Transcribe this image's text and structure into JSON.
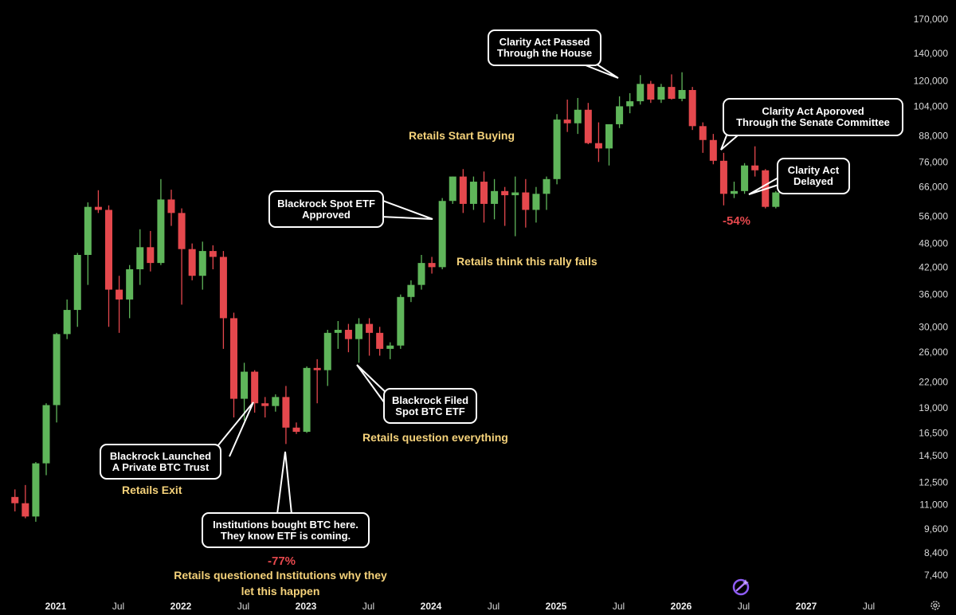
{
  "chart_data": {
    "type": "candlestick",
    "scale": "log",
    "ylim": [
      6800,
      175000
    ],
    "y_ticks": [
      7400,
      8400,
      9600,
      11000,
      12500,
      14500,
      16500,
      19000,
      22000,
      26000,
      30000,
      36000,
      42000,
      48000,
      56000,
      66000,
      76000,
      88000,
      104000,
      120000,
      140000,
      170000
    ],
    "y_tick_labels": [
      "7,400",
      "8,400",
      "9,600",
      "11,000",
      "12,500",
      "14,500",
      "16,500",
      "19,000",
      "22,000",
      "26,000",
      "30,000",
      "36,000",
      "42,000",
      "48,000",
      "56,000",
      "66,000",
      "76,000",
      "88,000",
      "104,000",
      "120,000",
      "140,000",
      "170,000"
    ],
    "x_ticks": [
      {
        "label": "2021",
        "year": true
      },
      {
        "label": "Jul",
        "year": false
      },
      {
        "label": "2022",
        "year": true
      },
      {
        "label": "Jul",
        "year": false
      },
      {
        "label": "2023",
        "year": true
      },
      {
        "label": "Jul",
        "year": false
      },
      {
        "label": "2024",
        "year": true
      },
      {
        "label": "Jul",
        "year": false
      },
      {
        "label": "2025",
        "year": true
      },
      {
        "label": "Jul",
        "year": false
      },
      {
        "label": "2026",
        "year": true
      },
      {
        "label": "Jul",
        "year": false
      },
      {
        "label": "2027",
        "year": true
      },
      {
        "label": "Jul",
        "year": false
      }
    ],
    "bull_color": "#5fb55a",
    "bear_color": "#e5484d",
    "candles": [
      {
        "date": "2020-10",
        "o": 11500,
        "h": 12000,
        "l": 10600,
        "c": 11100
      },
      {
        "date": "2020-11",
        "o": 11100,
        "h": 12300,
        "l": 10200,
        "c": 10300
      },
      {
        "date": "2020-12",
        "o": 10300,
        "h": 14000,
        "l": 10000,
        "c": 13900
      },
      {
        "date": "2021-01",
        "o": 13900,
        "h": 19500,
        "l": 13000,
        "c": 19300
      },
      {
        "date": "2021-02",
        "o": 19300,
        "h": 29000,
        "l": 17500,
        "c": 28800
      },
      {
        "date": "2021-03",
        "o": 28800,
        "h": 35000,
        "l": 28000,
        "c": 33000
      },
      {
        "date": "2021-04",
        "o": 33000,
        "h": 45500,
        "l": 30000,
        "c": 45000
      },
      {
        "date": "2021-05",
        "o": 45000,
        "h": 60500,
        "l": 38000,
        "c": 59000
      },
      {
        "date": "2021-06",
        "o": 59000,
        "h": 64800,
        "l": 57000,
        "c": 58000
      },
      {
        "date": "2021-07",
        "o": 58000,
        "h": 59500,
        "l": 30000,
        "c": 37000
      },
      {
        "date": "2021-08",
        "o": 37000,
        "h": 40000,
        "l": 29000,
        "c": 35000
      },
      {
        "date": "2021-09",
        "o": 35000,
        "h": 42500,
        "l": 31500,
        "c": 41500
      },
      {
        "date": "2021-10",
        "o": 41500,
        "h": 52000,
        "l": 38000,
        "c": 47000
      },
      {
        "date": "2021-11",
        "o": 47000,
        "h": 51500,
        "l": 41000,
        "c": 43000
      },
      {
        "date": "2021-12",
        "o": 43000,
        "h": 69000,
        "l": 42500,
        "c": 61500
      },
      {
        "date": "2022-01",
        "o": 61500,
        "h": 65000,
        "l": 53000,
        "c": 57000
      },
      {
        "date": "2022-02",
        "o": 57000,
        "h": 58500,
        "l": 34000,
        "c": 46500
      },
      {
        "date": "2022-03",
        "o": 46500,
        "h": 48000,
        "l": 39000,
        "c": 40000
      },
      {
        "date": "2022-04",
        "o": 40000,
        "h": 48500,
        "l": 37000,
        "c": 46000
      },
      {
        "date": "2022-05",
        "o": 46000,
        "h": 47500,
        "l": 41500,
        "c": 44500
      },
      {
        "date": "2022-06",
        "o": 44500,
        "h": 46000,
        "l": 26500,
        "c": 31500
      },
      {
        "date": "2022-07",
        "o": 31500,
        "h": 32500,
        "l": 18000,
        "c": 20000
      },
      {
        "date": "2022-08",
        "o": 20000,
        "h": 24500,
        "l": 17700,
        "c": 23300
      },
      {
        "date": "2022-09",
        "o": 23300,
        "h": 23500,
        "l": 18500,
        "c": 19500
      },
      {
        "date": "2022-10",
        "o": 19500,
        "h": 20200,
        "l": 18000,
        "c": 19200
      },
      {
        "date": "2022-11",
        "o": 19200,
        "h": 20500,
        "l": 18600,
        "c": 20200
      },
      {
        "date": "2022-12",
        "o": 20200,
        "h": 21500,
        "l": 15500,
        "c": 17000
      },
      {
        "date": "2023-01",
        "o": 17000,
        "h": 17500,
        "l": 16400,
        "c": 16600
      },
      {
        "date": "2023-02",
        "o": 16600,
        "h": 24000,
        "l": 16500,
        "c": 23800
      },
      {
        "date": "2023-03",
        "o": 23800,
        "h": 25000,
        "l": 19500,
        "c": 23500
      },
      {
        "date": "2023-04",
        "o": 23500,
        "h": 29500,
        "l": 21500,
        "c": 29000
      },
      {
        "date": "2023-05",
        "o": 29000,
        "h": 31000,
        "l": 26500,
        "c": 29500
      },
      {
        "date": "2023-06",
        "o": 29500,
        "h": 30500,
        "l": 26000,
        "c": 28000
      },
      {
        "date": "2023-07",
        "o": 28000,
        "h": 31500,
        "l": 24500,
        "c": 30500
      },
      {
        "date": "2023-08",
        "o": 30500,
        "h": 31500,
        "l": 25500,
        "c": 29000
      },
      {
        "date": "2023-09",
        "o": 29000,
        "h": 30000,
        "l": 25500,
        "c": 26500
      },
      {
        "date": "2023-10",
        "o": 26500,
        "h": 27500,
        "l": 25000,
        "c": 27000
      },
      {
        "date": "2023-11",
        "o": 27000,
        "h": 36000,
        "l": 26500,
        "c": 35500
      },
      {
        "date": "2023-12",
        "o": 35500,
        "h": 39000,
        "l": 34500,
        "c": 38000
      },
      {
        "date": "2024-01",
        "o": 38000,
        "h": 45000,
        "l": 37000,
        "c": 43000
      },
      {
        "date": "2024-02",
        "o": 43000,
        "h": 44500,
        "l": 40500,
        "c": 42000
      },
      {
        "date": "2024-03",
        "o": 42000,
        "h": 62000,
        "l": 41500,
        "c": 61000
      },
      {
        "date": "2024-04",
        "o": 61000,
        "h": 70000,
        "l": 60000,
        "c": 70000
      },
      {
        "date": "2024-05",
        "o": 70000,
        "h": 73000,
        "l": 57000,
        "c": 60000
      },
      {
        "date": "2024-06",
        "o": 60000,
        "h": 70000,
        "l": 58000,
        "c": 68000
      },
      {
        "date": "2024-07",
        "o": 68000,
        "h": 72000,
        "l": 54000,
        "c": 60000
      },
      {
        "date": "2024-08",
        "o": 60000,
        "h": 69000,
        "l": 55000,
        "c": 64500
      },
      {
        "date": "2024-09",
        "o": 64500,
        "h": 66000,
        "l": 53000,
        "c": 63000
      },
      {
        "date": "2024-10",
        "o": 63000,
        "h": 70000,
        "l": 50000,
        "c": 64000
      },
      {
        "date": "2024-11",
        "o": 64000,
        "h": 69000,
        "l": 52500,
        "c": 58000
      },
      {
        "date": "2024-12",
        "o": 58000,
        "h": 66000,
        "l": 54000,
        "c": 63500
      },
      {
        "date": "2025-01",
        "o": 63500,
        "h": 70000,
        "l": 58000,
        "c": 69000
      },
      {
        "date": "2025-02",
        "o": 69000,
        "h": 99500,
        "l": 67000,
        "c": 96500
      },
      {
        "date": "2025-03",
        "o": 96500,
        "h": 108000,
        "l": 90000,
        "c": 94500
      },
      {
        "date": "2025-04",
        "o": 94500,
        "h": 109000,
        "l": 89000,
        "c": 102000
      },
      {
        "date": "2025-05",
        "o": 102000,
        "h": 106000,
        "l": 84000,
        "c": 84500
      },
      {
        "date": "2025-06",
        "o": 84500,
        "h": 95000,
        "l": 76000,
        "c": 82000
      },
      {
        "date": "2025-07",
        "o": 82000,
        "h": 94000,
        "l": 74500,
        "c": 94000
      },
      {
        "date": "2025-08",
        "o": 94000,
        "h": 110000,
        "l": 92000,
        "c": 104000
      },
      {
        "date": "2025-09",
        "o": 104000,
        "h": 112000,
        "l": 100000,
        "c": 107000
      },
      {
        "date": "2025-10",
        "o": 107000,
        "h": 124000,
        "l": 105000,
        "c": 118000
      },
      {
        "date": "2025-11",
        "o": 118000,
        "h": 120000,
        "l": 106000,
        "c": 108000
      },
      {
        "date": "2025-12",
        "o": 108000,
        "h": 118000,
        "l": 106000,
        "c": 116000
      },
      {
        "date": "2026-01",
        "o": 116000,
        "h": 124500,
        "l": 108000,
        "c": 108500
      },
      {
        "date": "2026-02",
        "o": 108500,
        "h": 126000,
        "l": 107000,
        "c": 114000
      },
      {
        "date": "2026-03",
        "o": 114000,
        "h": 116000,
        "l": 91000,
        "c": 93000
      },
      {
        "date": "2026-04",
        "o": 93000,
        "h": 95000,
        "l": 80000,
        "c": 86000
      },
      {
        "date": "2026-05",
        "o": 86000,
        "h": 89000,
        "l": 75000,
        "c": 76500
      },
      {
        "date": "2026-06",
        "o": 76500,
        "h": 80000,
        "l": 59500,
        "c": 63500
      },
      {
        "date": "2026-07",
        "o": 63500,
        "h": 68000,
        "l": 62000,
        "c": 64500
      },
      {
        "date": "2026-08",
        "o": 64500,
        "h": 75500,
        "l": 63500,
        "c": 74500
      },
      {
        "date": "2026-09",
        "o": 74500,
        "h": 83000,
        "l": 70000,
        "c": 72500
      },
      {
        "date": "2026-10",
        "o": 72500,
        "h": 73000,
        "l": 58500,
        "c": 59000
      },
      {
        "date": "2026-11",
        "o": 59000,
        "h": 64500,
        "l": 58500,
        "c": 64000
      }
    ],
    "callouts": [
      {
        "text": "Blackrock Launched\nA Private BTC Trust"
      },
      {
        "text": "Institutions bought BTC here.\nThey know ETF is coming."
      },
      {
        "text": "Blackrock Filed\nSpot BTC ETF"
      },
      {
        "text": "Blackrock Spot ETF\nApproved"
      },
      {
        "text": "Clarity Act Passed\nThrough the House"
      },
      {
        "text": "Clarity Act Aporoved\nThrough the Senate Committee"
      },
      {
        "text": "Clarity Act\nDelayed"
      }
    ],
    "notes": [
      {
        "text": "Retails Exit"
      },
      {
        "text": "Retails question everything"
      },
      {
        "text": "Retails think this rally fails"
      },
      {
        "text": "Retails Start Buying"
      },
      {
        "text": "Retails questioned Institutions why they"
      },
      {
        "text": "let this happen"
      }
    ],
    "percent_labels": [
      {
        "text": "-77%"
      },
      {
        "text": "-54%"
      }
    ]
  }
}
